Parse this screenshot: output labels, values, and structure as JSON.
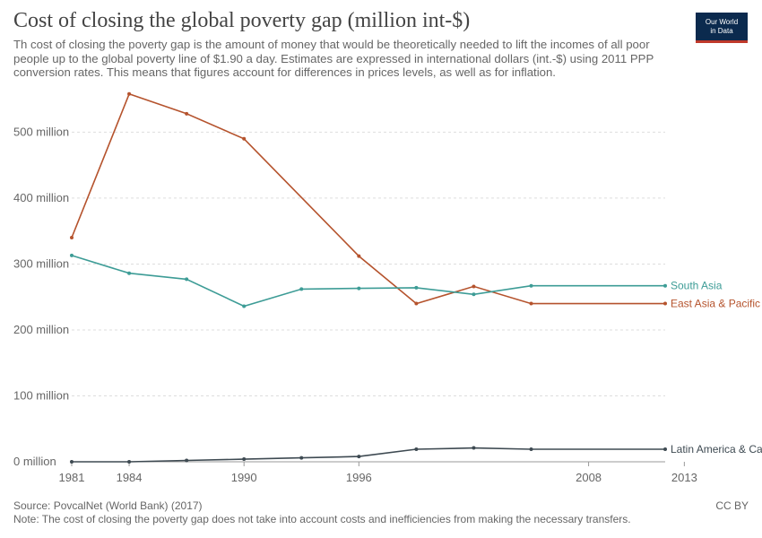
{
  "header": {
    "title": "Cost of closing the global poverty gap (million int-$)",
    "subtitle": "Th cost of closing the poverty gap is the amount of money that would be theoretically needed to lift the incomes of all poor people up to the global poverty line of $1.90 a day. Estimates are expressed in international dollars (int.-$) using 2011 PPP conversion rates. This means that figures account for differences in prices levels, as well as for inflation."
  },
  "logo": {
    "line1": "Our World",
    "line2": "in Data"
  },
  "footer": {
    "source": "Source: PovcalNet (World Bank) (2017)",
    "note": "Note: The cost of closing the poverty gap does not take into account costs and inefficiencies from making the necessary transfers.",
    "license": "CC BY"
  },
  "chart_data": {
    "type": "line",
    "title": "Cost of closing the global poverty gap (million int-$)",
    "x": [
      1981,
      1984,
      1987,
      1990,
      1993,
      1996,
      1999,
      2002,
      2005,
      2008,
      2010,
      2011,
      2012,
      2013
    ],
    "x_ticks": [
      1981,
      1984,
      1990,
      1996,
      2008,
      2013
    ],
    "y_ticks": [
      0,
      100,
      200,
      300,
      400,
      500
    ],
    "y_tick_labels": [
      "0 million",
      "100 million",
      "200 million",
      "300 million",
      "400 million",
      "500 million"
    ],
    "ylim": [
      0,
      540
    ],
    "grid": "horizontal dashed",
    "series": [
      {
        "name": "East Asia & Pacific",
        "color": "#b5532d",
        "points": [
          [
            1981,
            340
          ],
          [
            1984,
            558
          ],
          [
            1987,
            528
          ],
          [
            1990,
            490
          ],
          [
            1996,
            312
          ],
          [
            1999,
            240
          ],
          [
            2002,
            266
          ],
          [
            2005,
            240
          ],
          [
            2012,
            240
          ]
        ]
      },
      {
        "name": "South Asia",
        "color": "#3d9c96",
        "points": [
          [
            1981,
            313
          ],
          [
            1984,
            286
          ],
          [
            1987,
            277
          ],
          [
            1990,
            236
          ],
          [
            1993,
            262
          ],
          [
            1996,
            263
          ],
          [
            1999,
            264
          ],
          [
            2002,
            254
          ],
          [
            2005,
            267
          ],
          [
            2012,
            267
          ]
        ]
      },
      {
        "name": "Latin America & Caribbean",
        "color": "#3e4a52",
        "points": [
          [
            1981,
            0
          ],
          [
            1984,
            0
          ],
          [
            1987,
            2
          ],
          [
            1990,
            4
          ],
          [
            1993,
            6
          ],
          [
            1996,
            8
          ],
          [
            1999,
            19
          ],
          [
            2002,
            21
          ],
          [
            2005,
            19
          ],
          [
            2012,
            19
          ]
        ]
      }
    ]
  }
}
